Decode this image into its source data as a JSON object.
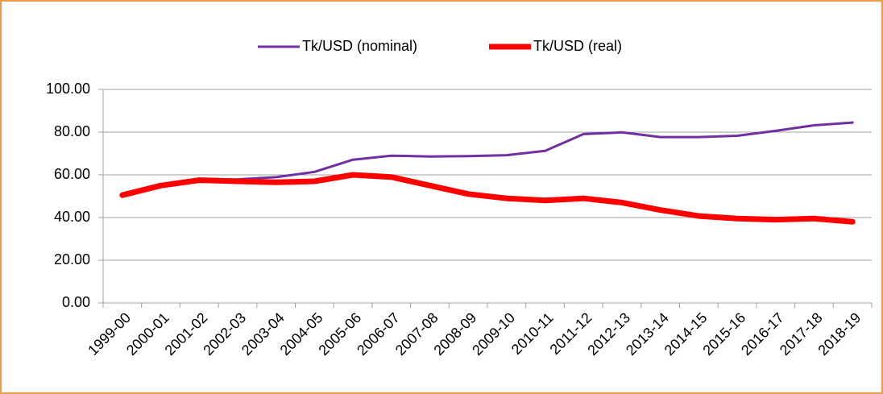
{
  "chart_data": {
    "type": "line",
    "categories": [
      "1999-00",
      "2000-01",
      "2001-02",
      "2002-03",
      "2003-04",
      "2004-05",
      "2005-06",
      "2006-07",
      "2007-08",
      "2008-09",
      "2009-10",
      "2010-11",
      "2011-12",
      "2012-13",
      "2013-14",
      "2014-15",
      "2015-16",
      "2016-17",
      "2017-18",
      "2018-19"
    ],
    "series": [
      {
        "name": "Tk/USD (nominal)",
        "color": "#7030a0",
        "values": [
          50.3,
          54.5,
          57.5,
          57.9,
          58.9,
          61.4,
          67.1,
          69.0,
          68.6,
          68.8,
          69.2,
          71.2,
          79.1,
          79.9,
          77.7,
          77.7,
          78.3,
          80.6,
          83.2,
          84.5
        ]
      },
      {
        "name": "Tk/USD (real)",
        "color": "#ff0000",
        "values": [
          50.5,
          55.0,
          57.5,
          57.0,
          56.5,
          57.0,
          60.0,
          59.0,
          55.0,
          51.0,
          49.0,
          48.0,
          49.0,
          47.0,
          43.5,
          40.7,
          39.5,
          39.0,
          39.5,
          38.0
        ]
      }
    ],
    "ylim": [
      0,
      100
    ],
    "yticks": [
      {
        "value": 0,
        "label": "0.00"
      },
      {
        "value": 20,
        "label": "20.00"
      },
      {
        "value": 40,
        "label": "40.00"
      },
      {
        "value": 60,
        "label": "60.00"
      },
      {
        "value": 80,
        "label": "80.00"
      },
      {
        "value": 100,
        "label": "100.00"
      }
    ],
    "grid": true,
    "legend": "top"
  }
}
